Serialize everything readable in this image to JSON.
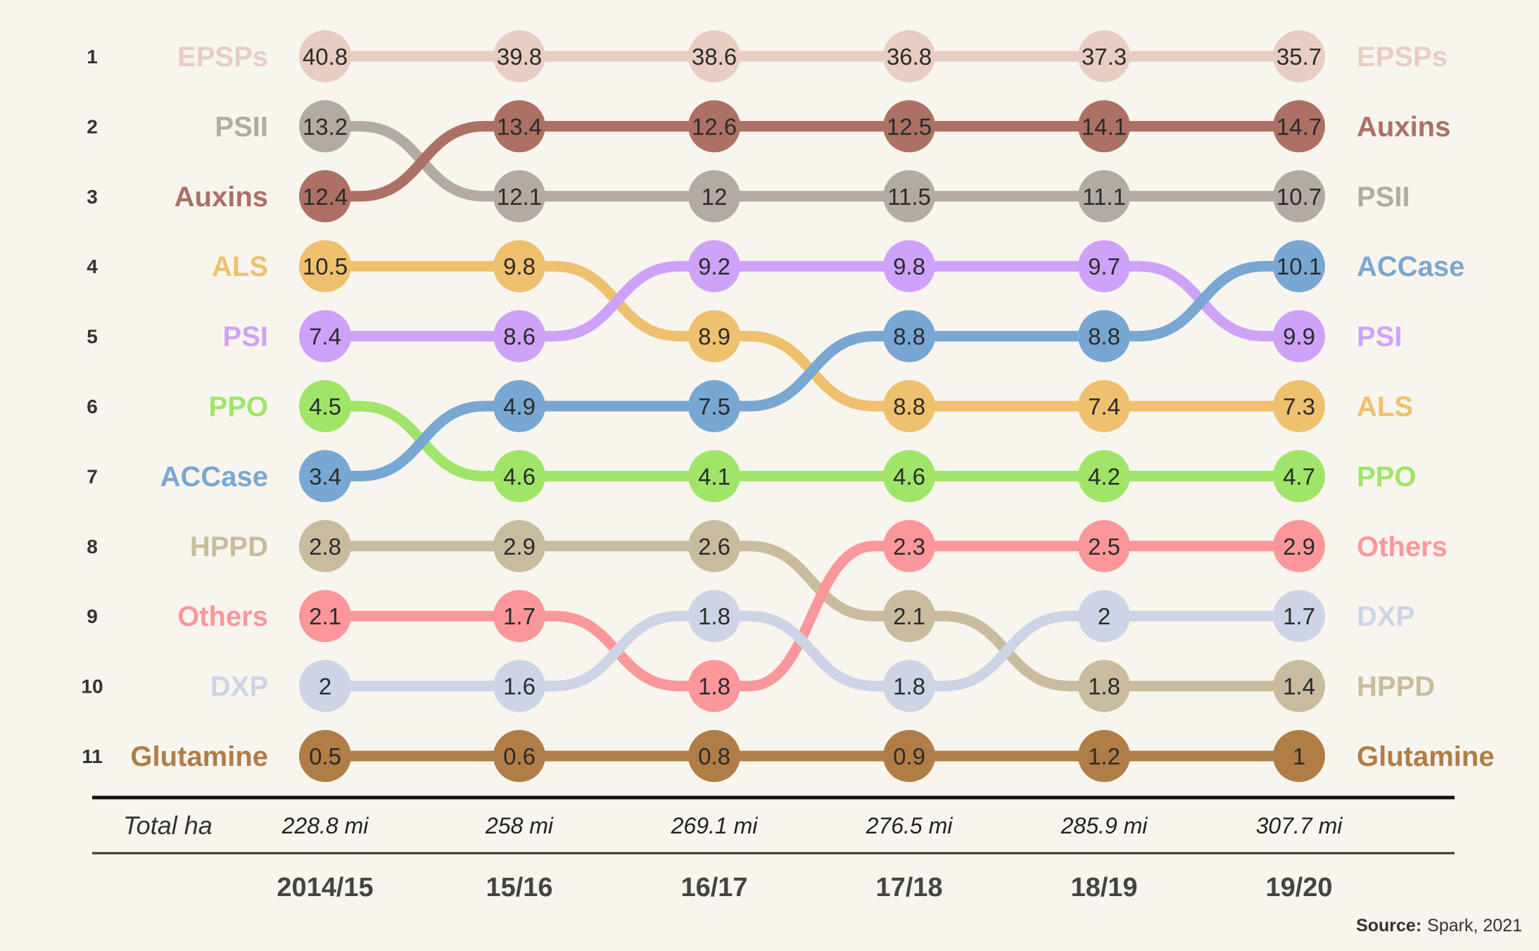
{
  "chart_data": {
    "type": "bump",
    "x": [
      "2014/15",
      "15/16",
      "16/17",
      "17/18",
      "18/19",
      "19/20"
    ],
    "ranks": [
      1,
      2,
      3,
      4,
      5,
      6,
      7,
      8,
      9,
      10,
      11
    ],
    "series": [
      {
        "name": "EPSPs",
        "color": "#e8cdc3",
        "ranks": [
          1,
          1,
          1,
          1,
          1,
          1
        ],
        "values": [
          "40.8",
          "39.8",
          "38.6",
          "36.8",
          "37.3",
          "35.7"
        ]
      },
      {
        "name": "PSII",
        "color": "#b3aaa4",
        "ranks": [
          2,
          3,
          3,
          3,
          3,
          3
        ],
        "values": [
          "13.2",
          "12.1",
          "12",
          "11.5",
          "11.1",
          "10.7"
        ]
      },
      {
        "name": "Auxins",
        "color": "#ac7064",
        "ranks": [
          3,
          2,
          2,
          2,
          2,
          2
        ],
        "values": [
          "12.4",
          "13.4",
          "12.6",
          "12.5",
          "14.1",
          "14.7"
        ]
      },
      {
        "name": "ALS",
        "color": "#efc06d",
        "ranks": [
          4,
          4,
          5,
          6,
          6,
          6
        ],
        "values": [
          "10.5",
          "9.8",
          "8.9",
          "8.8",
          "7.4",
          "7.3"
        ]
      },
      {
        "name": "PSI",
        "color": "#cfa2fa",
        "ranks": [
          5,
          5,
          4,
          4,
          4,
          5
        ],
        "values": [
          "7.4",
          "8.6",
          "9.2",
          "9.8",
          "9.7",
          "9.9"
        ]
      },
      {
        "name": "PPO",
        "color": "#a0e568",
        "ranks": [
          6,
          7,
          7,
          7,
          7,
          7
        ],
        "values": [
          "4.5",
          "4.6",
          "4.1",
          "4.6",
          "4.2",
          "4.7"
        ]
      },
      {
        "name": "ACCase",
        "color": "#79a7d3",
        "ranks": [
          7,
          6,
          6,
          5,
          5,
          4
        ],
        "values": [
          "3.4",
          "4.9",
          "7.5",
          "8.8",
          "8.8",
          "10.1"
        ]
      },
      {
        "name": "HPPD",
        "color": "#c9bc9e",
        "ranks": [
          8,
          8,
          8,
          9,
          10,
          10
        ],
        "values": [
          "2.8",
          "2.9",
          "2.6",
          "2.1",
          "1.8",
          "1.4"
        ]
      },
      {
        "name": "Others",
        "color": "#fb979a",
        "ranks": [
          9,
          9,
          10,
          8,
          8,
          8
        ],
        "values": [
          "2.1",
          "1.7",
          "1.8",
          "2.3",
          "2.5",
          "2.9"
        ]
      },
      {
        "name": "DXP",
        "color": "#cdd4e6",
        "ranks": [
          10,
          10,
          9,
          10,
          9,
          9
        ],
        "values": [
          "2",
          "1.6",
          "1.8",
          "1.8",
          "2",
          "1.7"
        ]
      },
      {
        "name": "Glutamine",
        "color": "#b07d46",
        "ranks": [
          11,
          11,
          11,
          11,
          11,
          11
        ],
        "values": [
          "0.5",
          "0.6",
          "0.8",
          "0.9",
          "1.2",
          "1"
        ]
      }
    ],
    "left_labels": [
      "EPSPs",
      "PSII",
      "Auxins",
      "ALS",
      "PSI",
      "PPO",
      "ACCase",
      "HPPD",
      "Others",
      "DXP",
      "Glutamine"
    ],
    "right_labels": [
      "EPSPs",
      "Auxins",
      "PSII",
      "ACCase",
      "PSI",
      "ALS",
      "PPO",
      "Others",
      "DXP",
      "HPPD",
      "Glutamine"
    ],
    "totals_caption": "Total ha",
    "totals": [
      "228.8 mi",
      "258 mi",
      "269.1 mi",
      "276.5 mi",
      "285.9 mi",
      "307.7 mi"
    ]
  },
  "source": {
    "label": "Source:",
    "text": "Spark, 2021"
  }
}
